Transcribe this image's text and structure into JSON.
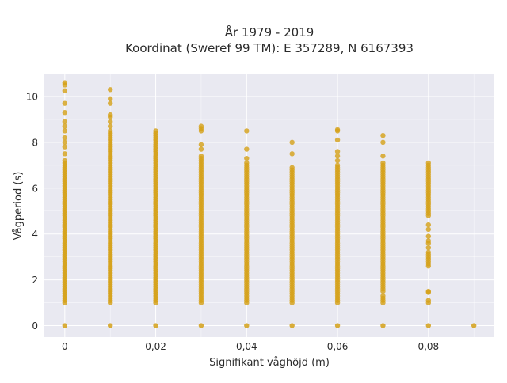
{
  "chart_data": {
    "type": "scatter",
    "title_line1": "År 1979 - 2019",
    "title_line2": "Koordinat (Sweref 99 TM): E 357289, N 6167393",
    "xlabel": "Signifikant våghöjd (m)",
    "ylabel": "Vågperiod (s)",
    "xlim": [
      -0.0045,
      0.0945
    ],
    "ylim": [
      -0.5,
      11.0
    ],
    "x_ticks": [
      0,
      0.02,
      0.04,
      0.06,
      0.08
    ],
    "x_tick_labels": [
      "0",
      "0,02",
      "0,04",
      "0,06",
      "0,08"
    ],
    "y_ticks": [
      0,
      2,
      4,
      6,
      8,
      10
    ],
    "y_tick_labels": [
      "0",
      "2",
      "4",
      "6",
      "8",
      "10"
    ],
    "grid": true,
    "background_color": "#e9e9f1",
    "marker_color": "#d4a017",
    "columns": [
      {
        "x": 0.0,
        "dense_min": 1.0,
        "dense_max": 7.2,
        "zero": true,
        "outliers": [
          7.5,
          7.8,
          8.0,
          8.2,
          8.5,
          8.7,
          8.9,
          9.3,
          9.7,
          10.25,
          10.5,
          10.6
        ]
      },
      {
        "x": 0.01,
        "dense_min": 1.0,
        "dense_max": 8.5,
        "zero": true,
        "outliers": [
          8.7,
          8.9,
          9.1,
          9.2,
          9.7,
          9.9,
          10.3
        ]
      },
      {
        "x": 0.02,
        "dense_min": 1.0,
        "dense_max": 8.5,
        "zero": true,
        "outliers": []
      },
      {
        "x": 0.03,
        "dense_min": 1.0,
        "dense_max": 7.4,
        "zero": true,
        "outliers": [
          7.7,
          7.9,
          8.5,
          8.6,
          8.7
        ]
      },
      {
        "x": 0.04,
        "dense_min": 1.0,
        "dense_max": 7.1,
        "zero": true,
        "outliers": [
          7.3,
          7.7,
          8.5
        ]
      },
      {
        "x": 0.05,
        "dense_min": 1.0,
        "dense_max": 6.9,
        "zero": true,
        "outliers": [
          7.5,
          8.0
        ]
      },
      {
        "x": 0.06,
        "dense_min": 1.0,
        "dense_max": 7.0,
        "zero": true,
        "outliers": [
          7.2,
          7.4,
          7.6,
          8.1,
          8.5,
          8.55
        ]
      },
      {
        "x": 0.07,
        "dense_min": 1.5,
        "dense_max": 7.1,
        "zero": true,
        "outliers": [
          1.0,
          1.1,
          1.2,
          1.3,
          7.4,
          8.0,
          8.3
        ]
      },
      {
        "x": 0.08,
        "dense_min": 4.8,
        "dense_max": 6.9,
        "zero": true,
        "outliers": [
          1.0,
          1.1,
          1.45,
          1.5,
          2.6,
          2.7,
          2.8,
          2.9,
          3.0,
          3.1,
          3.2,
          3.4,
          3.6,
          3.7,
          3.9,
          4.2,
          4.4,
          7.0,
          7.1
        ]
      },
      {
        "x": 0.09,
        "dense_min": null,
        "dense_max": null,
        "zero": true,
        "outliers": []
      }
    ]
  }
}
